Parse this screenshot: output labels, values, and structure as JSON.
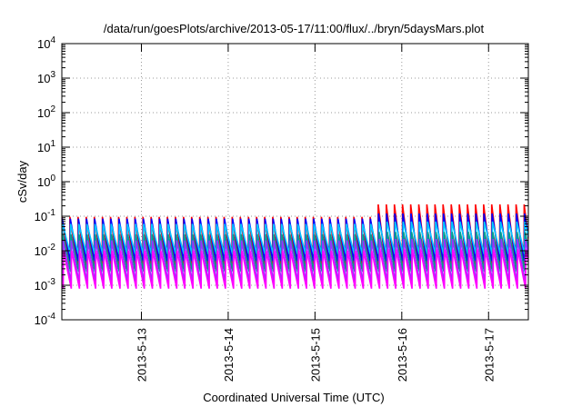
{
  "chart_data": {
    "type": "line",
    "title": "/data/run/goesPlots/archive/2013-05-17/11:00/flux/../bryn/5daysMars.plot",
    "xlabel": "Coordinated Universal Time (UTC)",
    "ylabel": "cSv/day",
    "x_axis": {
      "type": "date",
      "range": [
        "2013-05-12 02:00",
        "2013-05-17 11:00"
      ],
      "ticks": [
        "2013-5-13",
        "2013-5-14",
        "2013-5-15",
        "2013-5-16",
        "2013-5-17"
      ],
      "tick_dates": [
        "2013-05-13",
        "2013-05-14",
        "2013-05-15",
        "2013-05-16",
        "2013-05-17"
      ]
    },
    "y_axis": {
      "scale": "log",
      "range": [
        0.0001,
        10000
      ],
      "ticks": [
        {
          "base": "10",
          "exp": "-4"
        },
        {
          "base": "10",
          "exp": "-3"
        },
        {
          "base": "10",
          "exp": "-2"
        },
        {
          "base": "10",
          "exp": "-1"
        },
        {
          "base": "10",
          "exp": "0"
        },
        {
          "base": "10",
          "exp": "1"
        },
        {
          "base": "10",
          "exp": "2"
        },
        {
          "base": "10",
          "exp": "3"
        },
        {
          "base": "10",
          "exp": "4"
        }
      ]
    },
    "grid": true,
    "legend": "none",
    "pattern": {
      "kind": "sawtooth",
      "cycles_per_day": 10.7,
      "elevated_from": "2013-05-15 16:00"
    },
    "series": [
      {
        "color": "#ff0000",
        "peak": 0.095,
        "trough": 0.003,
        "peak_elevated": 0.22
      },
      {
        "color": "#0000ff",
        "peak": 0.085,
        "trough": 0.005,
        "peak_elevated": 0.12
      },
      {
        "color": "#00c8ff",
        "peak": 0.06,
        "trough": 0.008,
        "peak_elevated": 0.07
      },
      {
        "color": "#009e8e",
        "peak": 0.03,
        "trough": 0.0025,
        "peak_elevated": 0.035
      },
      {
        "color": "#9a30ff",
        "peak": 0.02,
        "trough": 0.0012,
        "peak_elevated": 0.022
      },
      {
        "color": "#ff00ff",
        "peak": 0.01,
        "trough": 0.0008,
        "peak_elevated": 0.011
      }
    ]
  }
}
